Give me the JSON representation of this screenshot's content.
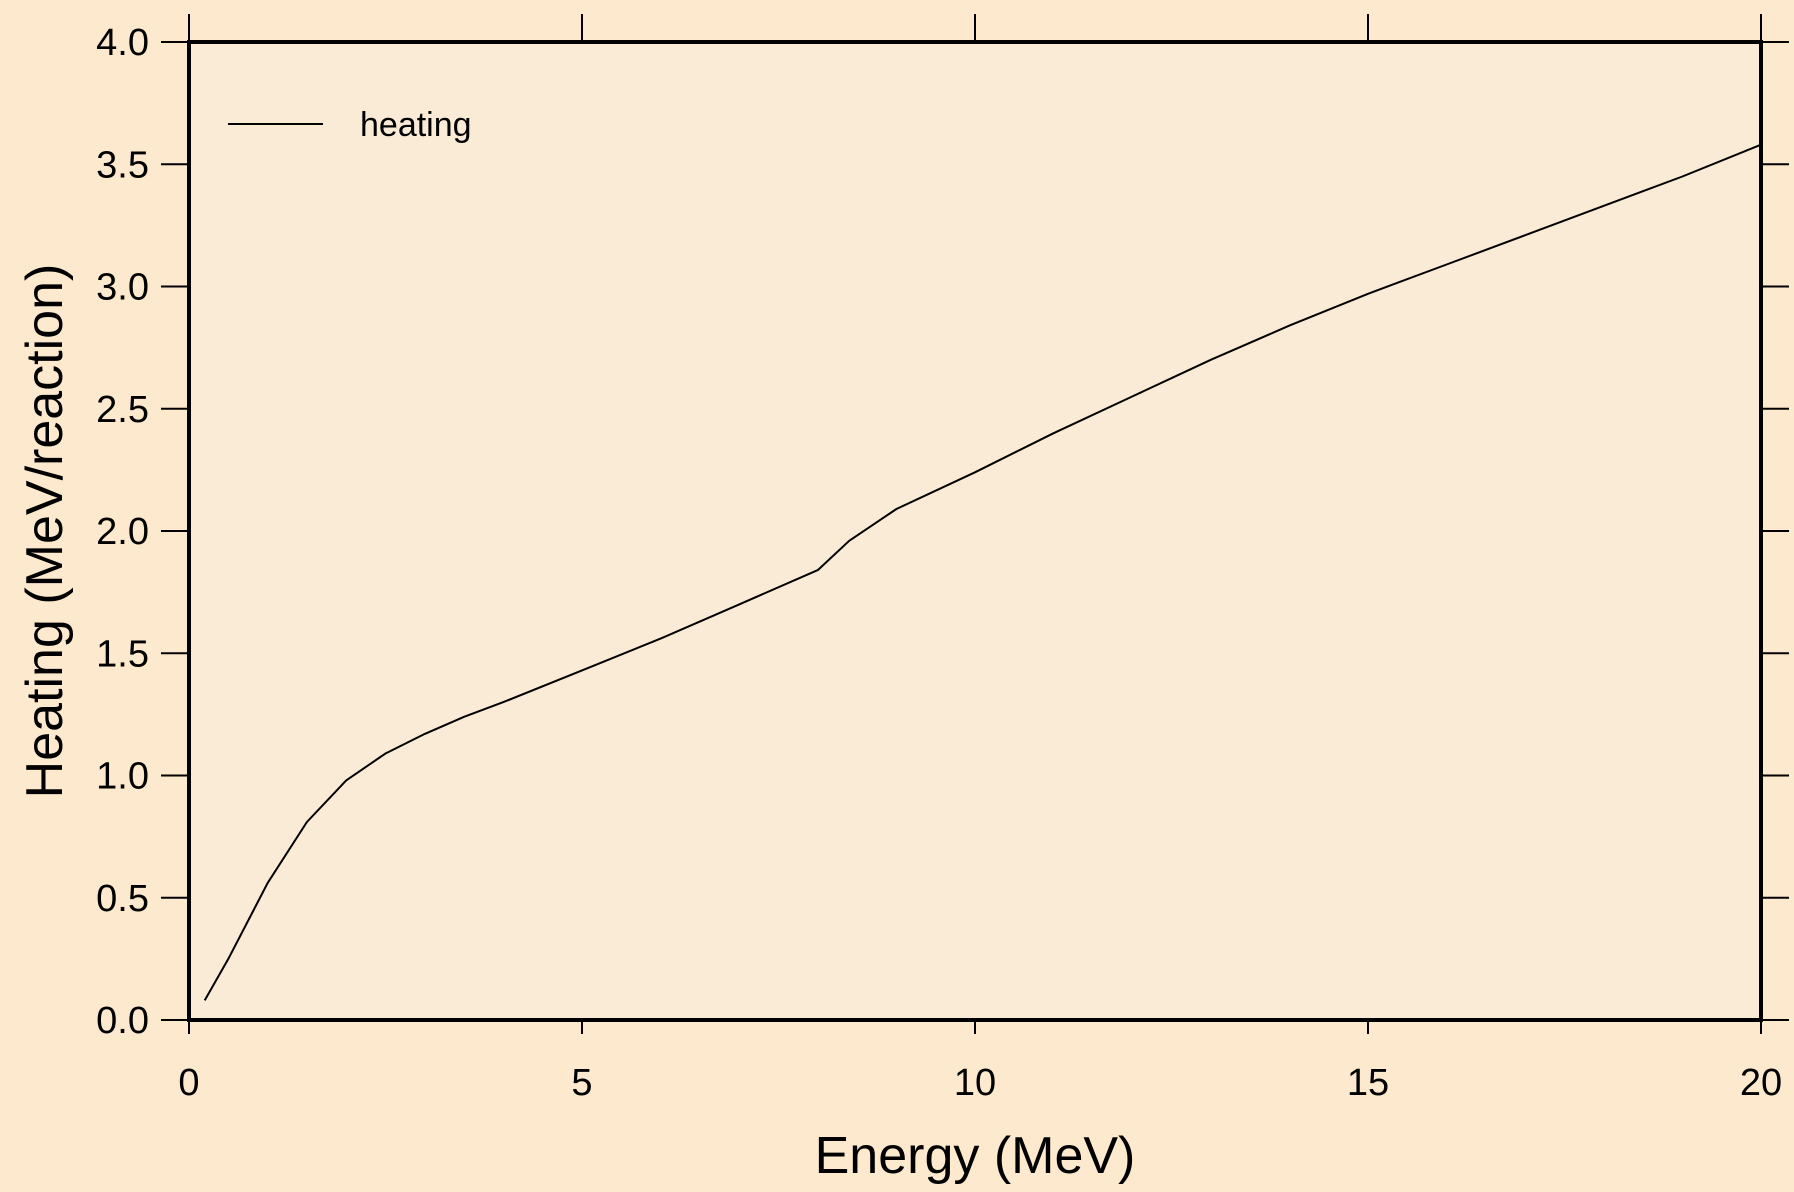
{
  "chart_data": {
    "type": "line",
    "xlabel": "Energy (MeV)",
    "ylabel": "Heating (MeV/reaction)",
    "xlim": [
      0,
      20
    ],
    "ylim": [
      0,
      4
    ],
    "xticks": [
      0,
      5,
      10,
      15,
      20
    ],
    "xtick_labels": [
      "0",
      "5",
      "10",
      "15",
      "20"
    ],
    "yticks": [
      0,
      0.5,
      1,
      1.5,
      2,
      2.5,
      3,
      3.5,
      4
    ],
    "ytick_labels": [
      "0.0",
      "0.5",
      "1.0",
      "1.5",
      "2.0",
      "2.5",
      "3.0",
      "3.5",
      "4.0"
    ],
    "grid": false,
    "legend_position": "top-left",
    "series": [
      {
        "name": "heating",
        "color": "#000000",
        "x": [
          0.2,
          0.5,
          1.0,
          1.5,
          2.0,
          2.5,
          3.0,
          3.5,
          4.0,
          5.0,
          6.0,
          7.0,
          8.0,
          8.4,
          9.0,
          10.0,
          11.0,
          12.0,
          13.0,
          14.0,
          15.0,
          16.0,
          17.0,
          18.0,
          19.0,
          20.0
        ],
        "y": [
          0.08,
          0.25,
          0.56,
          0.81,
          0.98,
          1.09,
          1.17,
          1.24,
          1.3,
          1.43,
          1.56,
          1.7,
          1.84,
          1.96,
          2.09,
          2.24,
          2.4,
          2.55,
          2.7,
          2.84,
          2.97,
          3.09,
          3.21,
          3.33,
          3.45,
          3.58
        ]
      }
    ]
  }
}
